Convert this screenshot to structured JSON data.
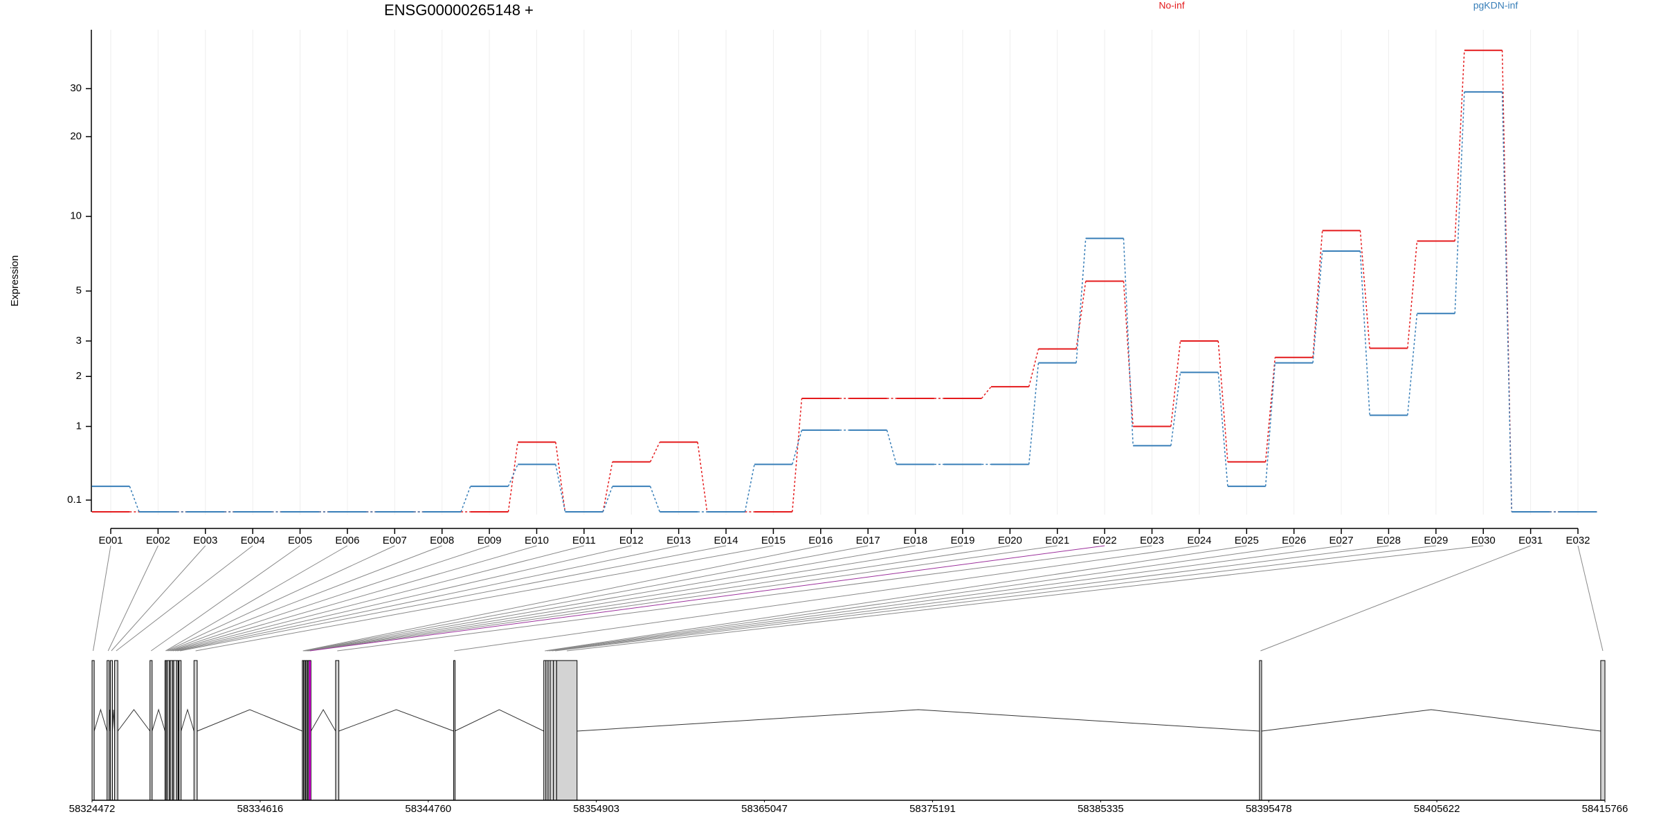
{
  "chart_data": {
    "type": "step-line",
    "title": "ENSG00000265148 +",
    "y_label": "Expression",
    "yscale": "log1p",
    "ylim": [
      0,
      49
    ],
    "yticks": [
      0.1,
      1,
      2,
      3,
      5,
      10,
      20,
      30
    ],
    "grid": true,
    "categories": [
      "E001",
      "E002",
      "E003",
      "E004",
      "E005",
      "E006",
      "E007",
      "E008",
      "E009",
      "E010",
      "E011",
      "E012",
      "E013",
      "E014",
      "E015",
      "E016",
      "E017",
      "E018",
      "E019",
      "E020",
      "E021",
      "E022",
      "E023",
      "E024",
      "E025",
      "E026",
      "E027",
      "E028",
      "E029",
      "E030",
      "E031",
      "E032"
    ],
    "series": [
      {
        "name": "No-inf",
        "color": "#e41a1c",
        "values": [
          0,
          0,
          0,
          0,
          0,
          0,
          0,
          0,
          0,
          0.76,
          0,
          0.5,
          0.76,
          0,
          0,
          1.51,
          1.51,
          1.51,
          1.51,
          1.76,
          2.75,
          5.5,
          1.0,
          3.0,
          0.5,
          2.5,
          8.8,
          2.77,
          8.0,
          41.3,
          0,
          0
        ]
      },
      {
        "name": "pgKDN-inf",
        "color": "#377eb8",
        "values": [
          0.23,
          0,
          0,
          0,
          0,
          0,
          0,
          0,
          0.23,
          0.47,
          0,
          0.23,
          0,
          0,
          0.47,
          0.94,
          0.94,
          0.47,
          0.47,
          0.47,
          2.35,
          8.2,
          0.71,
          2.1,
          0.23,
          2.35,
          7.3,
          1.19,
          4.0,
          29.2,
          0,
          0
        ]
      }
    ],
    "gene_model": {
      "xlim": [
        58324472,
        58415766
      ],
      "xticks": [
        58324472,
        58334616,
        58344760,
        58354903,
        58365047,
        58375191,
        58385335,
        58395478,
        58405622,
        58415766
      ],
      "exons": [
        [
          58324472,
          58324602
        ],
        [
          58325378,
          58325508
        ],
        [
          58325573,
          58325702
        ],
        [
          58325832,
          58326026
        ],
        [
          58327969,
          58328098
        ],
        [
          58328875,
          58328940
        ],
        [
          58328940,
          58329005
        ],
        [
          58329005,
          58329134
        ],
        [
          58329134,
          58329199
        ],
        [
          58329199,
          58329328
        ],
        [
          58329328,
          58329393
        ],
        [
          58329393,
          58329587
        ],
        [
          58329587,
          58329652
        ],
        [
          58329717,
          58329846
        ],
        [
          58330623,
          58330818
        ],
        [
          58337163,
          58337228
        ],
        [
          58337228,
          58337293
        ],
        [
          58337293,
          58337357
        ],
        [
          58337357,
          58337422
        ],
        [
          58337422,
          58337487
        ],
        [
          58337487,
          58337552
        ],
        [
          58337552,
          58337681
        ],
        [
          58339170,
          58339365
        ],
        [
          58346293,
          58346358
        ],
        [
          58351732,
          58351861
        ],
        [
          58351861,
          58351991
        ],
        [
          58351991,
          58352120
        ],
        [
          58352120,
          58352315
        ],
        [
          58352315,
          58352509
        ],
        [
          58352509,
          58353739
        ],
        [
          58394920,
          58395050
        ],
        [
          58415511,
          58415766
        ]
      ],
      "exon_colors": [
        "#d3d3d3",
        "#d3d3d3",
        "#d3d3d3",
        "#d3d3d3",
        "#d3d3d3",
        "#d3d3d3",
        "#d3d3d3",
        "#d3d3d3",
        "#d3d3d3",
        "#d3d3d3",
        "#d3d3d3",
        "#d3d3d3",
        "#d3d3d3",
        "#d3d3d3",
        "#d3d3d3",
        "#d3d3d3",
        "#d3d3d3",
        "#d3d3d3",
        "#d3d3d3",
        "#d3d3d3",
        "#d3d3d3",
        "#ff00ff",
        "#d3d3d3",
        "#d3d3d3",
        "#d3d3d3",
        "#d3d3d3",
        "#d3d3d3",
        "#d3d3d3",
        "#d3d3d3",
        "#d3d3d3",
        "#d3d3d3",
        "#d3d3d3"
      ]
    }
  }
}
